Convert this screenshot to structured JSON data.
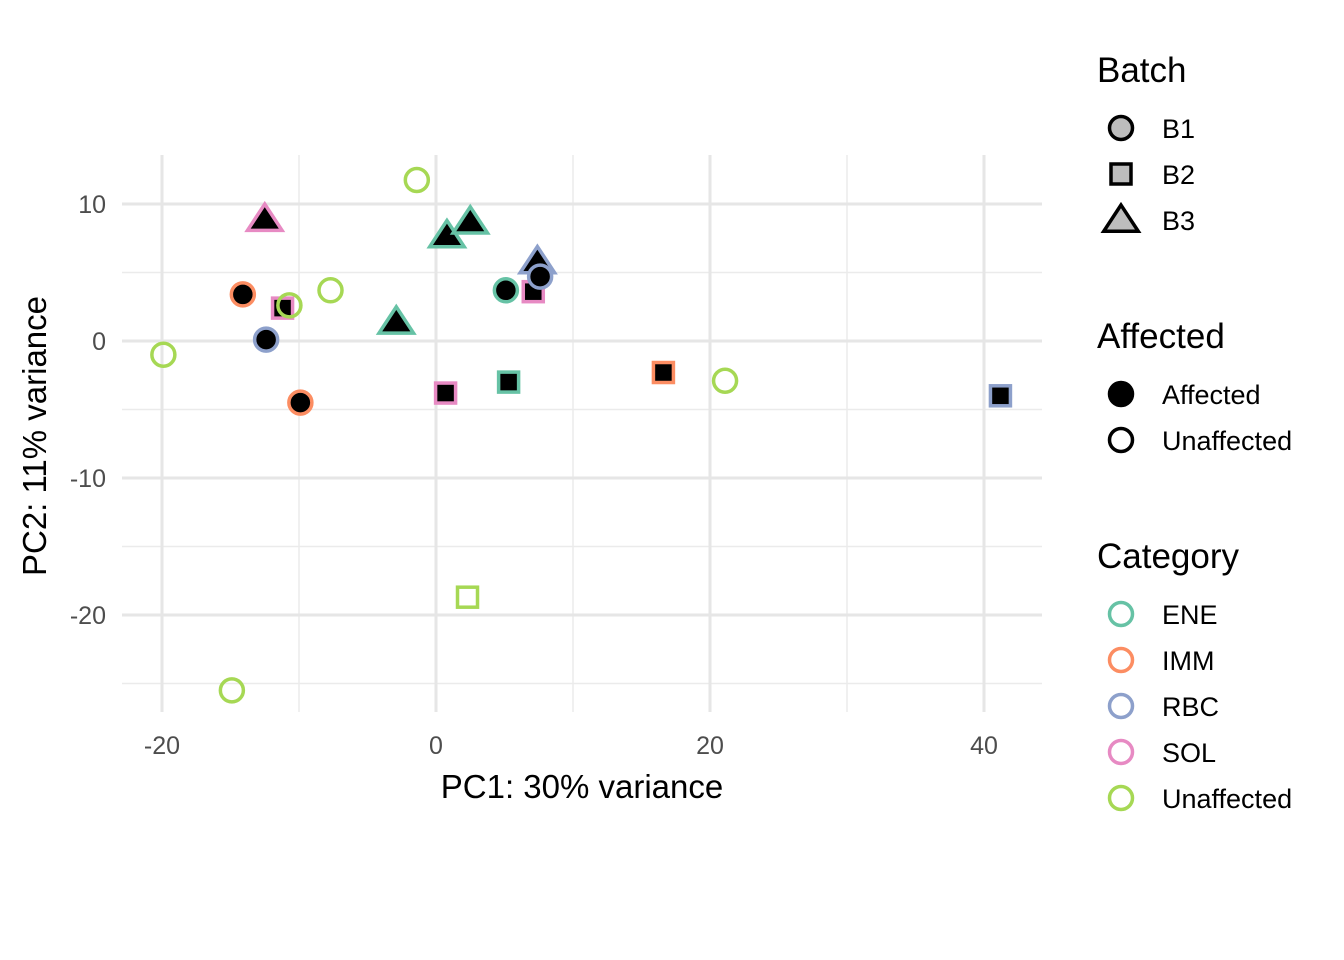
{
  "chart_data": {
    "type": "scatter",
    "xlabel": "PC1: 30% variance",
    "ylabel": "PC2: 11% variance",
    "xlim": [
      -22.9,
      44.2
    ],
    "ylim": [
      -27.1,
      13.6
    ],
    "x_ticks": [
      -20,
      0,
      20,
      40
    ],
    "y_ticks": [
      -20,
      -10,
      0,
      10
    ],
    "x_tick_labels": [
      "-20",
      "0",
      "20",
      "40"
    ],
    "y_tick_labels": [
      "-20",
      "-10",
      "0",
      "10"
    ],
    "grid": true,
    "legend_position": "right",
    "colors": {
      "ENE": "#66C2A5",
      "IMM": "#FC8D62",
      "RBC": "#8DA0CB",
      "SOL": "#E78AC3",
      "Unaffected": "#A6D854"
    },
    "legends": [
      {
        "title": "Batch",
        "items": [
          {
            "label": "B1",
            "shape": "circle"
          },
          {
            "label": "B2",
            "shape": "square"
          },
          {
            "label": "B3",
            "shape": "triangle"
          }
        ]
      },
      {
        "title": "Affected",
        "items": [
          {
            "label": "Affected",
            "fill": "filled"
          },
          {
            "label": "Unaffected",
            "fill": "open"
          }
        ]
      },
      {
        "title": "Category",
        "items": [
          {
            "label": "ENE"
          },
          {
            "label": "IMM"
          },
          {
            "label": "RBC"
          },
          {
            "label": "SOL"
          },
          {
            "label": "Unaffected"
          }
        ]
      }
    ],
    "points": [
      {
        "x": -1.4,
        "y": 11.75,
        "batch": "B1",
        "affected": "Unaffected",
        "category": "Unaffected"
      },
      {
        "x": -12.5,
        "y": 8.9,
        "batch": "B3",
        "affected": "Affected",
        "category": "SOL"
      },
      {
        "x": 0.8,
        "y": 7.7,
        "batch": "B3",
        "affected": "Affected",
        "category": "ENE"
      },
      {
        "x": 2.5,
        "y": 8.7,
        "batch": "B3",
        "affected": "Affected",
        "category": "ENE"
      },
      {
        "x": 7.4,
        "y": 5.8,
        "batch": "B3",
        "affected": "Affected",
        "category": "RBC"
      },
      {
        "x": 7.1,
        "y": 3.6,
        "batch": "B2",
        "affected": "Affected",
        "category": "SOL"
      },
      {
        "x": 5.1,
        "y": 3.7,
        "batch": "B1",
        "affected": "Affected",
        "category": "ENE"
      },
      {
        "x": 7.6,
        "y": 4.7,
        "batch": "B1",
        "affected": "Affected",
        "category": "RBC"
      },
      {
        "x": -14.1,
        "y": 3.4,
        "batch": "B1",
        "affected": "Affected",
        "category": "IMM"
      },
      {
        "x": -11.2,
        "y": 2.4,
        "batch": "B2",
        "affected": "Affected",
        "category": "SOL"
      },
      {
        "x": -10.7,
        "y": 2.6,
        "batch": "B1",
        "affected": "Unaffected",
        "category": "Unaffected"
      },
      {
        "x": -7.7,
        "y": 3.7,
        "batch": "B1",
        "affected": "Unaffected",
        "category": "Unaffected"
      },
      {
        "x": -2.9,
        "y": 1.4,
        "batch": "B3",
        "affected": "Affected",
        "category": "ENE"
      },
      {
        "x": -12.4,
        "y": 0.1,
        "batch": "B1",
        "affected": "Affected",
        "category": "RBC"
      },
      {
        "x": -19.9,
        "y": -1.0,
        "batch": "B1",
        "affected": "Unaffected",
        "category": "Unaffected"
      },
      {
        "x": -9.9,
        "y": -4.5,
        "batch": "B1",
        "affected": "Affected",
        "category": "IMM"
      },
      {
        "x": 0.7,
        "y": -3.8,
        "batch": "B2",
        "affected": "Affected",
        "category": "SOL"
      },
      {
        "x": 5.3,
        "y": -3.0,
        "batch": "B2",
        "affected": "Affected",
        "category": "ENE"
      },
      {
        "x": 16.6,
        "y": -2.3,
        "batch": "B2",
        "affected": "Affected",
        "category": "IMM"
      },
      {
        "x": 21.1,
        "y": -2.9,
        "batch": "B1",
        "affected": "Unaffected",
        "category": "Unaffected"
      },
      {
        "x": 41.2,
        "y": -4.0,
        "batch": "B2",
        "affected": "Affected",
        "category": "RBC"
      },
      {
        "x": 2.3,
        "y": -18.7,
        "batch": "B2",
        "affected": "Unaffected",
        "category": "Unaffected"
      },
      {
        "x": -14.9,
        "y": -25.5,
        "batch": "B1",
        "affected": "Unaffected",
        "category": "Unaffected"
      }
    ]
  }
}
